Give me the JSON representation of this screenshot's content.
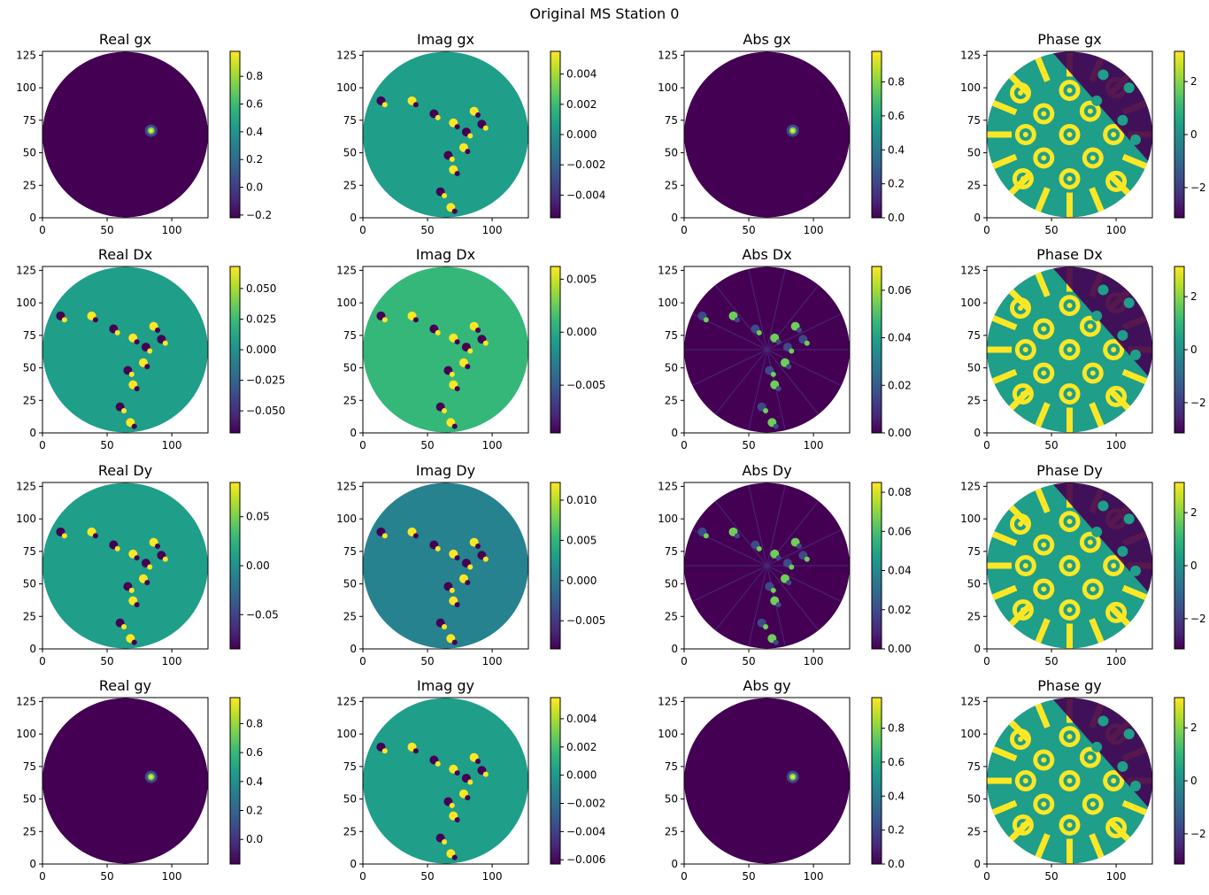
{
  "figure": {
    "suptitle": "Original MS Station 0"
  },
  "colormap": [
    "#440154",
    "#482878",
    "#3e4989",
    "#31688e",
    "#26828e",
    "#1f9e89",
    "#35b779",
    "#6ece58",
    "#b5de2b",
    "#fde725"
  ],
  "chart_data": [
    {
      "type": "heatmap",
      "title": "Real gx",
      "xlim": [
        0,
        128
      ],
      "ylim": [
        0,
        128
      ],
      "x_ticks": [
        0,
        50,
        100
      ],
      "y_ticks": [
        0,
        25,
        50,
        75,
        100,
        125
      ],
      "colorbar": {
        "range": [
          -0.22,
          0.98
        ],
        "ticks": [
          -0.2,
          0.0,
          0.2,
          0.4,
          0.6,
          0.8
        ],
        "tick_labels": [
          "−0.2",
          "0.0",
          "0.2",
          "0.4",
          "0.6",
          "0.8"
        ]
      },
      "pattern": "peak",
      "background": 0.03
    },
    {
      "type": "heatmap",
      "title": "Imag gx",
      "xlim": [
        0,
        128
      ],
      "ylim": [
        0,
        128
      ],
      "x_ticks": [
        0,
        50,
        100
      ],
      "y_ticks": [
        0,
        25,
        50,
        75,
        100,
        125
      ],
      "colorbar": {
        "range": [
          -0.0055,
          0.0055
        ],
        "ticks": [
          -0.004,
          -0.002,
          0.0,
          0.002,
          0.004
        ],
        "tick_labels": [
          "−0.004",
          "−0.002",
          "0.000",
          "0.002",
          "0.004"
        ]
      },
      "pattern": "speckle",
      "background": 0.55
    },
    {
      "type": "heatmap",
      "title": "Abs gx",
      "xlim": [
        0,
        128
      ],
      "ylim": [
        0,
        128
      ],
      "x_ticks": [
        0,
        50,
        100
      ],
      "y_ticks": [
        0,
        25,
        50,
        75,
        100,
        125
      ],
      "colorbar": {
        "range": [
          0.0,
          0.98
        ],
        "ticks": [
          0.0,
          0.2,
          0.4,
          0.6,
          0.8
        ],
        "tick_labels": [
          "0.0",
          "0.2",
          "0.4",
          "0.6",
          "0.8"
        ]
      },
      "pattern": "peak",
      "background": 0.0
    },
    {
      "type": "heatmap",
      "title": "Phase gx",
      "xlim": [
        0,
        128
      ],
      "ylim": [
        0,
        128
      ],
      "x_ticks": [
        0,
        50,
        100
      ],
      "y_ticks": [
        0,
        25,
        50,
        75,
        100,
        125
      ],
      "colorbar": {
        "range": [
          -3.14,
          3.14
        ],
        "ticks": [
          -2,
          0,
          2
        ],
        "tick_labels": [
          "−2",
          "0",
          "2"
        ]
      },
      "pattern": "phase",
      "background": 0.5
    },
    {
      "type": "heatmap",
      "title": "Real Dx",
      "xlim": [
        0,
        128
      ],
      "ylim": [
        0,
        128
      ],
      "x_ticks": [
        0,
        50,
        100
      ],
      "y_ticks": [
        0,
        25,
        50,
        75,
        100,
        125
      ],
      "colorbar": {
        "range": [
          -0.068,
          0.068
        ],
        "ticks": [
          -0.05,
          -0.025,
          0.0,
          0.025,
          0.05
        ],
        "tick_labels": [
          "−0.050",
          "−0.025",
          "0.000",
          "0.025",
          "0.050"
        ]
      },
      "pattern": "speckle",
      "background": 0.5
    },
    {
      "type": "heatmap",
      "title": "Imag Dx",
      "xlim": [
        0,
        128
      ],
      "ylim": [
        0,
        128
      ],
      "x_ticks": [
        0,
        50,
        100
      ],
      "y_ticks": [
        0,
        25,
        50,
        75,
        100,
        125
      ],
      "colorbar": {
        "range": [
          -0.0095,
          0.0062
        ],
        "ticks": [
          -0.005,
          0.0,
          0.005
        ],
        "tick_labels": [
          "−0.005",
          "0.000",
          "0.005"
        ]
      },
      "pattern": "speckle",
      "background": 0.62
    },
    {
      "type": "heatmap",
      "title": "Abs Dx",
      "xlim": [
        0,
        128
      ],
      "ylim": [
        0,
        128
      ],
      "x_ticks": [
        0,
        50,
        100
      ],
      "y_ticks": [
        0,
        25,
        50,
        75,
        100,
        125
      ],
      "colorbar": {
        "range": [
          0.0,
          0.07
        ],
        "ticks": [
          0.0,
          0.02,
          0.04,
          0.06
        ],
        "tick_labels": [
          "0.00",
          "0.02",
          "0.04",
          "0.06"
        ]
      },
      "pattern": "abs",
      "background": 0.03
    },
    {
      "type": "heatmap",
      "title": "Phase Dx",
      "xlim": [
        0,
        128
      ],
      "ylim": [
        0,
        128
      ],
      "x_ticks": [
        0,
        50,
        100
      ],
      "y_ticks": [
        0,
        25,
        50,
        75,
        100,
        125
      ],
      "colorbar": {
        "range": [
          -3.14,
          3.14
        ],
        "ticks": [
          -2,
          0,
          2
        ],
        "tick_labels": [
          "−2",
          "0",
          "2"
        ]
      },
      "pattern": "phase",
      "background": 0.5
    },
    {
      "type": "heatmap",
      "title": "Real Dy",
      "xlim": [
        0,
        128
      ],
      "ylim": [
        0,
        128
      ],
      "x_ticks": [
        0,
        50,
        100
      ],
      "y_ticks": [
        0,
        25,
        50,
        75,
        100,
        125
      ],
      "colorbar": {
        "range": [
          -0.085,
          0.085
        ],
        "ticks": [
          -0.05,
          0.0,
          0.05
        ],
        "tick_labels": [
          "−0.05",
          "0.00",
          "0.05"
        ]
      },
      "pattern": "speckle",
      "background": 0.5
    },
    {
      "type": "heatmap",
      "title": "Imag Dy",
      "xlim": [
        0,
        128
      ],
      "ylim": [
        0,
        128
      ],
      "x_ticks": [
        0,
        50,
        100
      ],
      "y_ticks": [
        0,
        25,
        50,
        75,
        100,
        125
      ],
      "colorbar": {
        "range": [
          -0.0085,
          0.0122
        ],
        "ticks": [
          -0.005,
          0.0,
          0.005,
          0.01
        ],
        "tick_labels": [
          "−0.005",
          "0.000",
          "0.005",
          "0.010"
        ]
      },
      "pattern": "speckle",
      "background": 0.42
    },
    {
      "type": "heatmap",
      "title": "Abs Dy",
      "xlim": [
        0,
        128
      ],
      "ylim": [
        0,
        128
      ],
      "x_ticks": [
        0,
        50,
        100
      ],
      "y_ticks": [
        0,
        25,
        50,
        75,
        100,
        125
      ],
      "colorbar": {
        "range": [
          0.0,
          0.085
        ],
        "ticks": [
          0.0,
          0.02,
          0.04,
          0.06,
          0.08
        ],
        "tick_labels": [
          "0.00",
          "0.02",
          "0.04",
          "0.06",
          "0.08"
        ]
      },
      "pattern": "abs",
      "background": 0.03
    },
    {
      "type": "heatmap",
      "title": "Phase Dy",
      "xlim": [
        0,
        128
      ],
      "ylim": [
        0,
        128
      ],
      "x_ticks": [
        0,
        50,
        100
      ],
      "y_ticks": [
        0,
        25,
        50,
        75,
        100,
        125
      ],
      "colorbar": {
        "range": [
          -3.14,
          3.14
        ],
        "ticks": [
          -2,
          0,
          2
        ],
        "tick_labels": [
          "−2",
          "0",
          "2"
        ]
      },
      "pattern": "phase",
      "background": 0.5
    },
    {
      "type": "heatmap",
      "title": "Real gy",
      "xlim": [
        0,
        128
      ],
      "ylim": [
        0,
        128
      ],
      "x_ticks": [
        0,
        50,
        100
      ],
      "y_ticks": [
        0,
        25,
        50,
        75,
        100,
        125
      ],
      "colorbar": {
        "range": [
          -0.17,
          0.98
        ],
        "ticks": [
          0.0,
          0.2,
          0.4,
          0.6,
          0.8
        ],
        "tick_labels": [
          "0.0",
          "0.2",
          "0.4",
          "0.6",
          "0.8"
        ]
      },
      "pattern": "peak",
      "background": 0.03
    },
    {
      "type": "heatmap",
      "title": "Imag gy",
      "xlim": [
        0,
        128
      ],
      "ylim": [
        0,
        128
      ],
      "x_ticks": [
        0,
        50,
        100
      ],
      "y_ticks": [
        0,
        25,
        50,
        75,
        100,
        125
      ],
      "colorbar": {
        "range": [
          -0.0063,
          0.0055
        ],
        "ticks": [
          -0.006,
          -0.004,
          -0.002,
          0.0,
          0.002,
          0.004
        ],
        "tick_labels": [
          "−0.006",
          "−0.004",
          "−0.002",
          "0.000",
          "0.002",
          "0.004"
        ]
      },
      "pattern": "speckle",
      "background": 0.55
    },
    {
      "type": "heatmap",
      "title": "Abs gy",
      "xlim": [
        0,
        128
      ],
      "ylim": [
        0,
        128
      ],
      "x_ticks": [
        0,
        50,
        100
      ],
      "y_ticks": [
        0,
        25,
        50,
        75,
        100,
        125
      ],
      "colorbar": {
        "range": [
          0.0,
          0.98
        ],
        "ticks": [
          0.0,
          0.2,
          0.4,
          0.6,
          0.8
        ],
        "tick_labels": [
          "0.0",
          "0.2",
          "0.4",
          "0.6",
          "0.8"
        ]
      },
      "pattern": "peak",
      "background": 0.0
    },
    {
      "type": "heatmap",
      "title": "Phase gy",
      "xlim": [
        0,
        128
      ],
      "ylim": [
        0,
        128
      ],
      "x_ticks": [
        0,
        50,
        100
      ],
      "y_ticks": [
        0,
        25,
        50,
        75,
        100,
        125
      ],
      "colorbar": {
        "range": [
          -3.14,
          3.14
        ],
        "ticks": [
          -2,
          0,
          2
        ],
        "tick_labels": [
          "−2",
          "0",
          "2"
        ]
      },
      "pattern": "phase",
      "background": 0.5
    }
  ]
}
